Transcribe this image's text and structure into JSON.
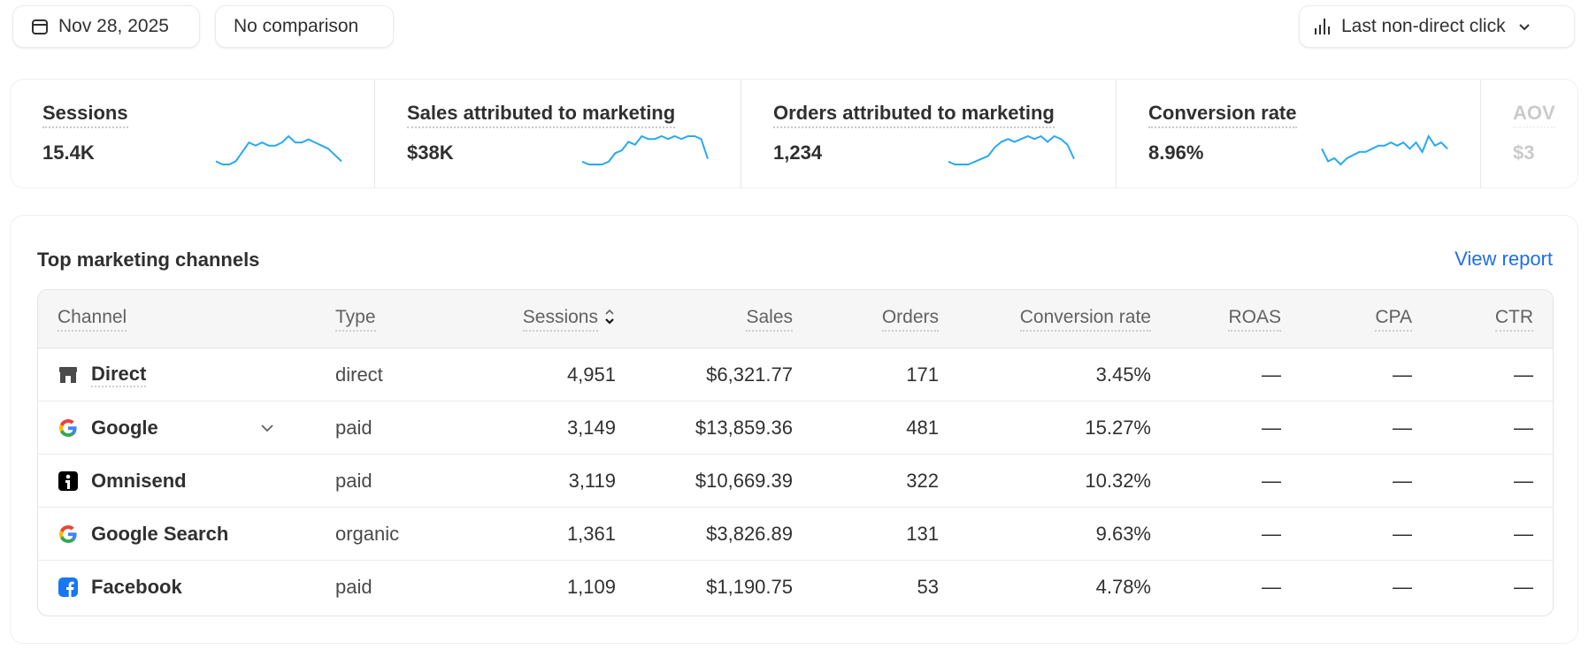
{
  "toolbar": {
    "date_label": "Nov 28, 2025",
    "comparison_label": "No comparison",
    "attribution_label": "Last non-direct click"
  },
  "kpis": [
    {
      "label": "Sessions",
      "value": "15.4K",
      "trend": [
        3,
        2,
        2,
        3,
        6,
        9,
        8,
        9,
        8,
        8,
        9,
        11,
        9,
        9,
        10,
        9,
        8,
        7,
        5,
        3
      ]
    },
    {
      "label": "Sales attributed to marketing",
      "value": "$38K",
      "trend": [
        3,
        2,
        2,
        2,
        3,
        6,
        7,
        10,
        9,
        12,
        11,
        11,
        12,
        11,
        12,
        11,
        12,
        12,
        11,
        4
      ]
    },
    {
      "label": "Orders attributed to marketing",
      "value": "1,234",
      "trend": [
        3,
        2,
        2,
        2,
        3,
        4,
        5,
        8,
        10,
        11,
        10,
        11,
        12,
        11,
        12,
        10,
        12,
        11,
        9,
        4
      ]
    },
    {
      "label": "Conversion rate",
      "value": "8.96%",
      "trend": [
        7,
        3,
        4,
        2,
        4,
        5,
        6,
        6,
        7,
        8,
        8,
        9,
        8,
        9,
        7,
        9,
        6,
        11,
        8,
        9,
        7
      ]
    },
    {
      "label": "AOV",
      "value": "$3"
    }
  ],
  "channels_card": {
    "title": "Top marketing channels",
    "view_report": "View report",
    "columns": [
      "Channel",
      "Type",
      "Sessions",
      "Sales",
      "Orders",
      "Conversion rate",
      "ROAS",
      "CPA",
      "CTR"
    ],
    "rows": [
      {
        "channel": "Direct",
        "icon": "storefront-icon",
        "type": "direct",
        "sessions": "4,951",
        "sales": "$6,321.77",
        "orders": "171",
        "conversion_rate": "3.45%",
        "roas": "—",
        "cpa": "—",
        "ctr": "—"
      },
      {
        "channel": "Google",
        "icon": "google-icon",
        "type": "paid",
        "sessions": "3,149",
        "sales": "$13,859.36",
        "orders": "481",
        "conversion_rate": "15.27%",
        "roas": "—",
        "cpa": "—",
        "ctr": "—"
      },
      {
        "channel": "Omnisend",
        "icon": "omnisend-icon",
        "type": "paid",
        "sessions": "3,119",
        "sales": "$10,669.39",
        "orders": "322",
        "conversion_rate": "10.32%",
        "roas": "—",
        "cpa": "—",
        "ctr": "—"
      },
      {
        "channel": "Google Search",
        "icon": "google-icon",
        "type": "organic",
        "sessions": "1,361",
        "sales": "$3,826.89",
        "orders": "131",
        "conversion_rate": "9.63%",
        "roas": "—",
        "cpa": "—",
        "ctr": "—"
      },
      {
        "channel": "Facebook",
        "icon": "facebook-icon",
        "type": "paid",
        "sessions": "1,109",
        "sales": "$1,190.75",
        "orders": "53",
        "conversion_rate": "4.78%",
        "roas": "—",
        "cpa": "—",
        "ctr": "—"
      }
    ]
  },
  "colors": {
    "sparkline": "#29a9f0",
    "link": "#1f6fe5"
  }
}
